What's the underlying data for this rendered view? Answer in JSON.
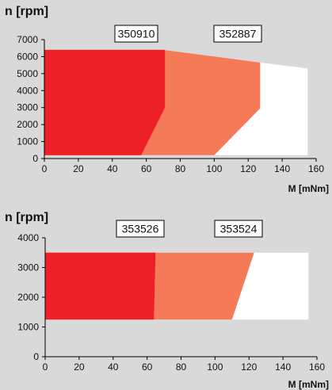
{
  "chart_data": [
    {
      "type": "area",
      "ylabel": "n [rpm]",
      "xlabel": "M [mNm]",
      "xlim": [
        0,
        160
      ],
      "ylim": [
        0,
        7000
      ],
      "xticks": [
        0,
        20,
        40,
        60,
        80,
        100,
        120,
        140,
        160
      ],
      "yticks": [
        0,
        1000,
        2000,
        3000,
        4000,
        5000,
        6000,
        7000
      ],
      "annotations": [
        "350910",
        "352887"
      ],
      "regions": [
        {
          "color": "#ffffff",
          "points": [
            [
              0,
              200
            ],
            [
              0,
              6400
            ],
            [
              70,
              6400
            ],
            [
              127,
              5650
            ],
            [
              155,
              5300
            ],
            [
              155,
              200
            ]
          ]
        },
        {
          "color": "#f47a58",
          "points": [
            [
              0,
              200
            ],
            [
              0,
              6400
            ],
            [
              70,
              6400
            ],
            [
              127,
              5650
            ],
            [
              127,
              2950
            ],
            [
              100,
              200
            ]
          ]
        },
        {
          "color": "#ee2027",
          "points": [
            [
              0,
              200
            ],
            [
              0,
              6400
            ],
            [
              71,
              6400
            ],
            [
              71,
              3000
            ],
            [
              57,
              200
            ]
          ]
        }
      ]
    },
    {
      "type": "area",
      "ylabel": "n [rpm]",
      "xlabel": "M [mNm]",
      "xlim": [
        0,
        160
      ],
      "ylim": [
        0,
        4000
      ],
      "xticks": [
        0,
        20,
        40,
        60,
        80,
        100,
        120,
        140,
        160
      ],
      "yticks": [
        0,
        1000,
        2000,
        3000,
        4000
      ],
      "annotations": [
        "353526",
        "353524"
      ],
      "regions": [
        {
          "color": "#ffffff",
          "points": [
            [
              0,
              1250
            ],
            [
              0,
              3500
            ],
            [
              155,
              3500
            ],
            [
              155,
              1250
            ]
          ]
        },
        {
          "color": "#f47a58",
          "points": [
            [
              0,
              1250
            ],
            [
              0,
              3500
            ],
            [
              123,
              3500
            ],
            [
              110,
              1250
            ]
          ]
        },
        {
          "color": "#ee2027",
          "points": [
            [
              0,
              1250
            ],
            [
              0,
              3500
            ],
            [
              65,
              3500
            ],
            [
              64,
              1250
            ]
          ]
        }
      ]
    }
  ]
}
